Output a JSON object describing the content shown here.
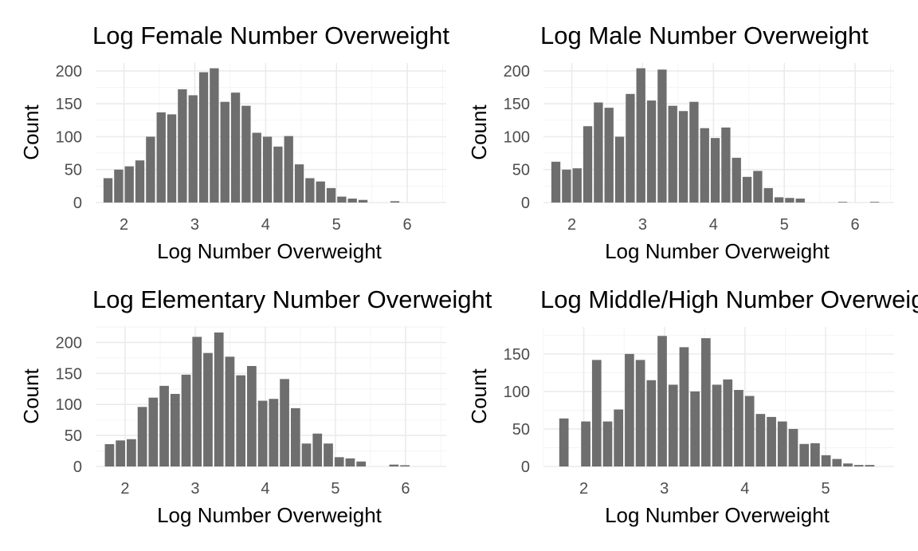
{
  "chart_data": [
    {
      "type": "bar",
      "title": "Log Female Number Overweight",
      "xlabel": "Log Number Overweight",
      "ylabel": "Count",
      "xlim": [
        1.6,
        6.55
      ],
      "ylim": [
        0,
        212
      ],
      "xticks": [
        2,
        3,
        4,
        5,
        6
      ],
      "yticks": [
        0,
        50,
        100,
        150,
        200
      ],
      "bin_start": 1.7,
      "bin_width": 0.15,
      "values": [
        37,
        50,
        55,
        64,
        100,
        137,
        134,
        172,
        163,
        198,
        204,
        153,
        167,
        147,
        106,
        100,
        85,
        101,
        58,
        37,
        32,
        22,
        9,
        6,
        4,
        0,
        0,
        2,
        0,
        0,
        0
      ]
    },
    {
      "type": "bar",
      "title": "Log Male Number Overweight",
      "xlabel": "Log Number Overweight",
      "ylabel": "Count",
      "xlim": [
        1.6,
        6.55
      ],
      "ylim": [
        0,
        212
      ],
      "xticks": [
        2,
        3,
        4,
        5,
        6
      ],
      "yticks": [
        0,
        50,
        100,
        150,
        200
      ],
      "bin_start": 1.7,
      "bin_width": 0.15,
      "values": [
        62,
        50,
        52,
        116,
        152,
        144,
        100,
        165,
        204,
        155,
        202,
        147,
        139,
        153,
        113,
        98,
        114,
        68,
        39,
        48,
        22,
        8,
        7,
        6,
        0,
        0,
        0,
        1,
        0,
        0,
        1
      ]
    },
    {
      "type": "bar",
      "title": "Log Elementary Number Overweight",
      "xlabel": "Log Number Overweight",
      "ylabel": "Count",
      "xlim": [
        1.58,
        6.58
      ],
      "ylim": [
        0,
        225
      ],
      "xticks": [
        2,
        3,
        4,
        5,
        6
      ],
      "yticks": [
        0,
        50,
        100,
        150,
        200
      ],
      "bin_start": 1.7,
      "bin_width": 0.156,
      "values": [
        36,
        42,
        44,
        96,
        111,
        130,
        117,
        148,
        209,
        183,
        216,
        177,
        147,
        162,
        106,
        109,
        141,
        94,
        37,
        53,
        37,
        15,
        13,
        8,
        0,
        0,
        3,
        2,
        0,
        0,
        0
      ]
    },
    {
      "type": "bar",
      "title": "Log Middle/High Number Overweight",
      "xlabel": "Log Number Overweight",
      "ylabel": "Count",
      "xlim": [
        1.5,
        5.85
      ],
      "ylim": [
        0,
        186
      ],
      "xticks": [
        2,
        3,
        4,
        5
      ],
      "yticks": [
        0,
        50,
        100,
        150
      ],
      "bin_start": 1.686,
      "bin_width": 0.1355,
      "values": [
        64,
        0,
        60,
        142,
        60,
        76,
        150,
        142,
        115,
        174,
        109,
        159,
        100,
        171,
        109,
        116,
        102,
        94,
        70,
        66,
        60,
        50,
        30,
        31,
        15,
        10,
        4,
        2,
        2,
        0
      ]
    }
  ]
}
